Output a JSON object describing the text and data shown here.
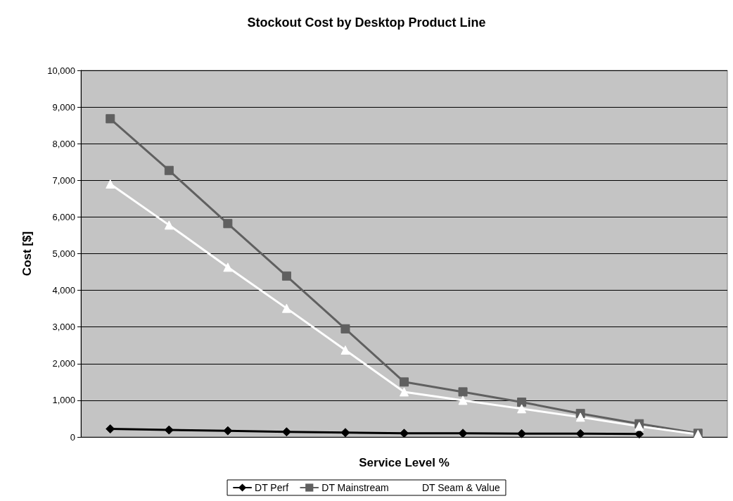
{
  "chart_data": {
    "type": "line",
    "title": "Stockout Cost by Desktop Product Line",
    "xlabel": "Service Level %",
    "ylabel": "Cost [$]",
    "categories": [
      null,
      null,
      null,
      null,
      null,
      null,
      null,
      null,
      null,
      null,
      null
    ],
    "series": [
      {
        "name": "DT Perf",
        "color": "#000000",
        "marker": "diamond",
        "values": [
          220,
          190,
          170,
          140,
          120,
          100,
          100,
          90,
          90,
          80,
          null
        ]
      },
      {
        "name": "DT Mainstream",
        "color": "#606060",
        "marker": "square",
        "values": [
          8680,
          7270,
          5820,
          4390,
          2950,
          1500,
          1230,
          950,
          640,
          360,
          100
        ]
      },
      {
        "name": "DT Seam & Value",
        "color": "#ffffff",
        "marker": "triangle",
        "values": [
          6900,
          5780,
          4630,
          3510,
          2370,
          1230,
          1000,
          770,
          540,
          290,
          70
        ]
      }
    ],
    "ylim": [
      0,
      10000
    ],
    "yticks": [
      0,
      {
        "value": 1000,
        "label": "1,000"
      },
      {
        "value": 2000,
        "label": "2,000"
      },
      {
        "value": 3000,
        "label": "3,000"
      },
      {
        "value": 4000,
        "label": "4,000"
      },
      {
        "value": 5000,
        "label": "5,000"
      },
      {
        "value": 6000,
        "label": "6,000"
      },
      {
        "value": 7000,
        "label": "7,000"
      },
      {
        "value": 8000,
        "label": "8,000"
      },
      {
        "value": 9000,
        "label": "9,000"
      },
      {
        "value": 10000,
        "label": "10,000"
      }
    ],
    "grid": "y",
    "legend": "bottom",
    "tick_labels": "y",
    "line_style": "solid"
  }
}
